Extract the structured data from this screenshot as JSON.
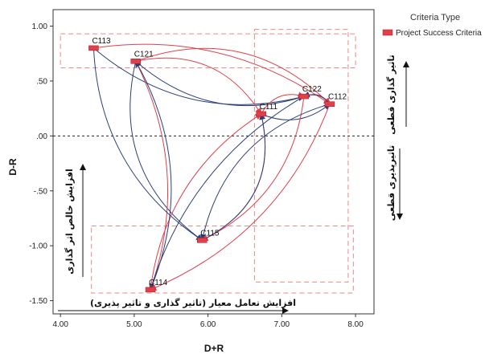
{
  "chart_data": {
    "type": "scatter",
    "xlabel": "D+R",
    "ylabel": "D-R",
    "xlim": [
      3.9,
      8.25
    ],
    "ylim": [
      -1.62,
      1.15
    ],
    "x_ticks": [
      "4.00",
      "5.00",
      "6.00",
      "7.00",
      "8.00"
    ],
    "x_tick_values": [
      4,
      5,
      6,
      7,
      8
    ],
    "y_ticks": [
      "1.00",
      ".50",
      ".00",
      "-.50",
      "-1.00",
      "-1.50"
    ],
    "y_tick_values": [
      1.0,
      0.5,
      0.0,
      -0.5,
      -1.0,
      -1.5
    ],
    "reference_line_y": 0,
    "legend": {
      "title": "Criteria Type",
      "entries": [
        {
          "name": "Project Success Criteria",
          "color": "#e0404a"
        }
      ],
      "placement": "top-right outside"
    },
    "series": [
      {
        "name": "Project Success Criteria",
        "color": "#e0404a",
        "points": [
          {
            "label": "C113",
            "x": 4.45,
            "y": 0.8
          },
          {
            "label": "C121",
            "x": 5.02,
            "y": 0.68
          },
          {
            "label": "C122",
            "x": 7.3,
            "y": 0.36
          },
          {
            "label": "C112",
            "x": 7.65,
            "y": 0.29
          },
          {
            "label": "C111",
            "x": 6.72,
            "y": 0.2
          },
          {
            "label": "C115",
            "x": 5.92,
            "y": -0.95
          },
          {
            "label": "C114",
            "x": 5.22,
            "y": -1.4
          }
        ]
      }
    ],
    "links": [
      [
        "C113",
        "C112"
      ],
      [
        "C113",
        "C122"
      ],
      [
        "C121",
        "C112"
      ],
      [
        "C121",
        "C122"
      ],
      [
        "C121",
        "C111"
      ],
      [
        "C121",
        "C115"
      ],
      [
        "C121",
        "C114"
      ],
      [
        "C113",
        "C115"
      ],
      [
        "C111",
        "C122"
      ],
      [
        "C111",
        "C112"
      ],
      [
        "C122",
        "C112"
      ],
      [
        "C112",
        "C122"
      ],
      [
        "C122",
        "C115"
      ],
      [
        "C112",
        "C115"
      ],
      [
        "C111",
        "C115"
      ],
      [
        "C122",
        "C114"
      ],
      [
        "C112",
        "C114"
      ],
      [
        "C115",
        "C111"
      ],
      [
        "C114",
        "C111"
      ],
      [
        "C114",
        "C121"
      ]
    ],
    "regions": [
      {
        "x0": 4.0,
        "x1": 8.0,
        "y0": 0.62,
        "y1": 0.93
      },
      {
        "x0": 6.63,
        "x1": 7.9,
        "y0": -1.33,
        "y1": 0.97
      },
      {
        "x0": 4.42,
        "x1": 7.97,
        "y0": -1.43,
        "y1": -0.82
      }
    ],
    "annotations": {
      "right_top": "تاثیر گذاری قطعی",
      "right_bottom": "تاثیرپذیری قطعی",
      "left_vertical": "افزایش خالص اثر گذاری",
      "bottom": "افزایش تعامل معیار (تاثیر گذاری و تاثیر پذیری)"
    }
  }
}
